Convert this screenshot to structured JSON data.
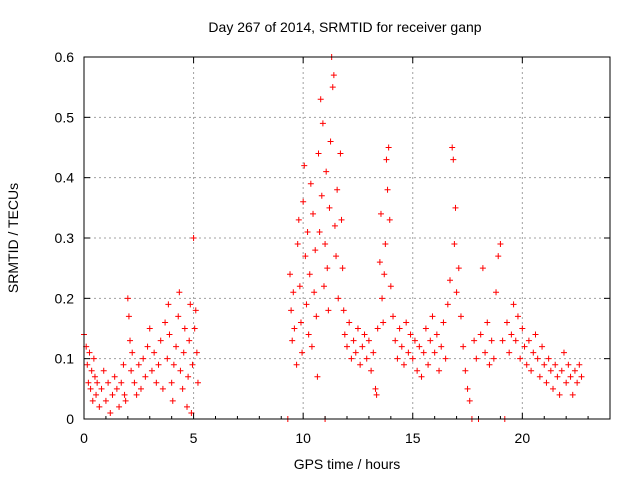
{
  "chart_data": {
    "type": "scatter",
    "title": "Day 267 of 2014, SRMTID for receiver ganp",
    "xlabel": "GPS time / hours",
    "ylabel": "SRMTID / TECUs",
    "xlim": [
      0,
      24
    ],
    "ylim": [
      0,
      0.6
    ],
    "x_ticks": [
      0,
      5,
      10,
      15,
      20
    ],
    "x_tick_labels": [
      "0",
      "5",
      "10",
      "15",
      "20"
    ],
    "y_ticks": [
      0,
      0.1,
      0.2,
      0.3,
      0.4,
      0.5,
      0.6
    ],
    "y_tick_labels": [
      "0",
      "0.1",
      "0.2",
      "0.3",
      "0.4",
      "0.5",
      "0.6"
    ],
    "grid": true,
    "marker": "plus",
    "color": "#ff0000",
    "series": [
      {
        "name": "SRMTID",
        "points": [
          [
            0.0,
            0.14
          ],
          [
            0.1,
            0.12
          ],
          [
            0.15,
            0.09
          ],
          [
            0.2,
            0.06
          ],
          [
            0.25,
            0.11
          ],
          [
            0.3,
            0.05
          ],
          [
            0.35,
            0.08
          ],
          [
            0.4,
            0.03
          ],
          [
            0.45,
            0.1
          ],
          [
            0.5,
            0.07
          ],
          [
            0.55,
            0.04
          ],
          [
            0.6,
            0.06
          ],
          [
            0.7,
            0.02
          ],
          [
            0.8,
            0.05
          ],
          [
            0.9,
            0.08
          ],
          [
            1.0,
            0.03
          ],
          [
            1.1,
            0.06
          ],
          [
            1.2,
            0.01
          ],
          [
            1.3,
            0.04
          ],
          [
            1.4,
            0.07
          ],
          [
            1.5,
            0.05
          ],
          [
            1.6,
            0.02
          ],
          [
            1.7,
            0.06
          ],
          [
            1.8,
            0.09
          ],
          [
            1.85,
            0.04
          ],
          [
            1.9,
            0.03
          ],
          [
            2.0,
            0.2
          ],
          [
            2.05,
            0.17
          ],
          [
            2.1,
            0.13
          ],
          [
            2.15,
            0.08
          ],
          [
            2.2,
            0.11
          ],
          [
            2.3,
            0.06
          ],
          [
            2.4,
            0.04
          ],
          [
            2.5,
            0.09
          ],
          [
            2.6,
            0.05
          ],
          [
            2.7,
            0.1
          ],
          [
            2.8,
            0.07
          ],
          [
            2.9,
            0.12
          ],
          [
            3.0,
            0.15
          ],
          [
            3.1,
            0.08
          ],
          [
            3.2,
            0.11
          ],
          [
            3.3,
            0.06
          ],
          [
            3.4,
            0.09
          ],
          [
            3.5,
            0.13
          ],
          [
            3.6,
            0.05
          ],
          [
            3.7,
            0.16
          ],
          [
            3.8,
            0.1
          ],
          [
            3.85,
            0.19
          ],
          [
            3.9,
            0.14
          ],
          [
            4.0,
            0.06
          ],
          [
            4.05,
            0.03
          ],
          [
            4.1,
            0.09
          ],
          [
            4.2,
            0.12
          ],
          [
            4.3,
            0.17
          ],
          [
            4.35,
            0.21
          ],
          [
            4.4,
            0.08
          ],
          [
            4.5,
            0.05
          ],
          [
            4.55,
            0.11
          ],
          [
            4.6,
            0.15
          ],
          [
            4.7,
            0.02
          ],
          [
            4.75,
            0.07
          ],
          [
            4.8,
            0.13
          ],
          [
            4.85,
            0.19
          ],
          [
            4.9,
            0.01
          ],
          [
            4.95,
            0.09
          ],
          [
            5.0,
            0.3
          ],
          [
            5.05,
            0.15
          ],
          [
            5.1,
            0.18
          ],
          [
            5.15,
            0.11
          ],
          [
            5.2,
            0.06
          ],
          [
            9.3,
            0.0
          ],
          [
            9.4,
            0.24
          ],
          [
            9.45,
            0.18
          ],
          [
            9.5,
            0.13
          ],
          [
            9.55,
            0.21
          ],
          [
            9.6,
            0.15
          ],
          [
            9.7,
            0.09
          ],
          [
            9.75,
            0.29
          ],
          [
            9.8,
            0.33
          ],
          [
            9.85,
            0.22
          ],
          [
            9.9,
            0.16
          ],
          [
            9.95,
            0.11
          ],
          [
            10.0,
            0.36
          ],
          [
            10.05,
            0.42
          ],
          [
            10.1,
            0.27
          ],
          [
            10.15,
            0.19
          ],
          [
            10.2,
            0.31
          ],
          [
            10.25,
            0.14
          ],
          [
            10.3,
            0.24
          ],
          [
            10.35,
            0.39
          ],
          [
            10.4,
            0.12
          ],
          [
            10.45,
            0.34
          ],
          [
            10.5,
            0.21
          ],
          [
            10.55,
            0.28
          ],
          [
            10.6,
            0.17
          ],
          [
            10.65,
            0.07
          ],
          [
            10.7,
            0.44
          ],
          [
            10.75,
            0.31
          ],
          [
            10.8,
            0.53
          ],
          [
            10.85,
            0.37
          ],
          [
            10.9,
            0.49
          ],
          [
            10.95,
            0.22
          ],
          [
            11.0,
            0.0
          ],
          [
            11.0,
            0.29
          ],
          [
            11.05,
            0.41
          ],
          [
            11.1,
            0.25
          ],
          [
            11.15,
            0.18
          ],
          [
            11.2,
            0.35
          ],
          [
            11.25,
            0.46
          ],
          [
            11.3,
            0.6
          ],
          [
            11.35,
            0.55
          ],
          [
            11.4,
            0.57
          ],
          [
            11.45,
            0.32
          ],
          [
            11.5,
            0.27
          ],
          [
            11.55,
            0.38
          ],
          [
            11.6,
            0.2
          ],
          [
            11.7,
            0.44
          ],
          [
            11.75,
            0.33
          ],
          [
            11.8,
            0.25
          ],
          [
            11.85,
            0.18
          ],
          [
            11.9,
            0.14
          ],
          [
            12.0,
            0.12
          ],
          [
            12.1,
            0.16
          ],
          [
            12.2,
            0.1
          ],
          [
            12.3,
            0.13
          ],
          [
            12.4,
            0.11
          ],
          [
            12.5,
            0.15
          ],
          [
            12.6,
            0.09
          ],
          [
            12.7,
            0.12
          ],
          [
            12.8,
            0.14
          ],
          [
            12.9,
            0.1
          ],
          [
            13.0,
            0.13
          ],
          [
            13.1,
            0.08
          ],
          [
            13.2,
            0.11
          ],
          [
            13.3,
            0.05
          ],
          [
            13.35,
            0.04
          ],
          [
            13.4,
            0.15
          ],
          [
            13.5,
            0.26
          ],
          [
            13.55,
            0.34
          ],
          [
            13.6,
            0.2
          ],
          [
            13.65,
            0.16
          ],
          [
            13.7,
            0.24
          ],
          [
            13.75,
            0.29
          ],
          [
            13.8,
            0.43
          ],
          [
            13.85,
            0.38
          ],
          [
            13.9,
            0.45
          ],
          [
            13.95,
            0.33
          ],
          [
            14.0,
            0.22
          ],
          [
            14.1,
            0.17
          ],
          [
            14.2,
            0.13
          ],
          [
            14.3,
            0.1
          ],
          [
            14.4,
            0.15
          ],
          [
            14.5,
            0.12
          ],
          [
            14.6,
            0.09
          ],
          [
            14.7,
            0.16
          ],
          [
            14.8,
            0.11
          ],
          [
            14.9,
            0.14
          ],
          [
            15.0,
            0.1
          ],
          [
            15.1,
            0.13
          ],
          [
            15.2,
            0.08
          ],
          [
            15.3,
            0.12
          ],
          [
            15.4,
            0.07
          ],
          [
            15.5,
            0.11
          ],
          [
            15.6,
            0.15
          ],
          [
            15.7,
            0.09
          ],
          [
            15.8,
            0.13
          ],
          [
            15.9,
            0.17
          ],
          [
            16.0,
            0.11
          ],
          [
            16.1,
            0.14
          ],
          [
            16.2,
            0.08
          ],
          [
            16.3,
            0.12
          ],
          [
            16.4,
            0.16
          ],
          [
            16.5,
            0.1
          ],
          [
            16.6,
            0.19
          ],
          [
            16.7,
            0.23
          ],
          [
            16.8,
            0.45
          ],
          [
            16.85,
            0.43
          ],
          [
            16.9,
            0.29
          ],
          [
            16.95,
            0.35
          ],
          [
            17.0,
            0.21
          ],
          [
            17.1,
            0.25
          ],
          [
            17.2,
            0.17
          ],
          [
            17.3,
            0.12
          ],
          [
            17.4,
            0.08
          ],
          [
            17.5,
            0.05
          ],
          [
            17.6,
            0.03
          ],
          [
            17.7,
            0.0
          ],
          [
            17.8,
            0.13
          ],
          [
            17.9,
            0.1
          ],
          [
            18.0,
            0.0
          ],
          [
            18.1,
            0.14
          ],
          [
            18.2,
            0.25
          ],
          [
            18.3,
            0.11
          ],
          [
            18.4,
            0.16
          ],
          [
            18.5,
            0.09
          ],
          [
            18.6,
            0.13
          ],
          [
            18.7,
            0.1
          ],
          [
            18.8,
            0.21
          ],
          [
            18.9,
            0.27
          ],
          [
            19.0,
            0.29
          ],
          [
            19.1,
            0.13
          ],
          [
            19.2,
            0.0
          ],
          [
            19.3,
            0.16
          ],
          [
            19.4,
            0.11
          ],
          [
            19.5,
            0.14
          ],
          [
            19.6,
            0.19
          ],
          [
            19.7,
            0.13
          ],
          [
            19.8,
            0.17
          ],
          [
            19.9,
            0.1
          ],
          [
            20.0,
            0.15
          ],
          [
            20.1,
            0.12
          ],
          [
            20.2,
            0.09
          ],
          [
            20.3,
            0.13
          ],
          [
            20.4,
            0.08
          ],
          [
            20.5,
            0.11
          ],
          [
            20.6,
            0.14
          ],
          [
            20.7,
            0.1
          ],
          [
            20.8,
            0.07
          ],
          [
            20.9,
            0.12
          ],
          [
            21.0,
            0.09
          ],
          [
            21.1,
            0.06
          ],
          [
            21.2,
            0.1
          ],
          [
            21.3,
            0.08
          ],
          [
            21.4,
            0.05
          ],
          [
            21.5,
            0.09
          ],
          [
            21.6,
            0.07
          ],
          [
            21.7,
            0.04
          ],
          [
            21.8,
            0.08
          ],
          [
            21.9,
            0.11
          ],
          [
            22.0,
            0.06
          ],
          [
            22.1,
            0.09
          ],
          [
            22.2,
            0.07
          ],
          [
            22.3,
            0.04
          ],
          [
            22.4,
            0.08
          ],
          [
            22.5,
            0.06
          ],
          [
            22.6,
            0.09
          ],
          [
            22.7,
            0.07
          ]
        ]
      }
    ]
  }
}
